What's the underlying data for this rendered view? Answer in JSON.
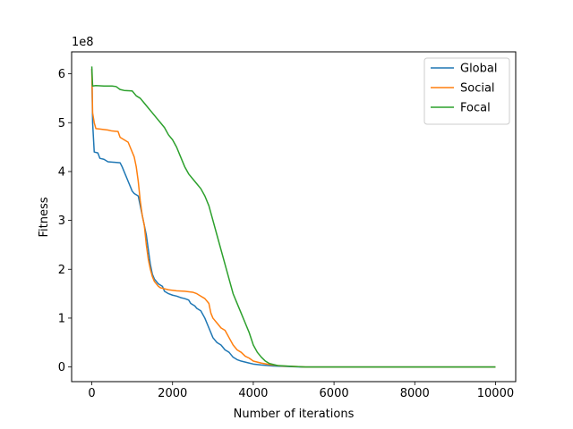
{
  "chart_data": {
    "type": "line",
    "title": "",
    "xlabel": "Number of iterations",
    "ylabel": "Fitness",
    "y_offset_label": "1e8",
    "xlim": [
      -500,
      10500
    ],
    "ylim": [
      -0.3,
      6.45
    ],
    "x_ticks": [
      0,
      2000,
      4000,
      6000,
      8000,
      10000
    ],
    "x_tick_labels": [
      "0",
      "2000",
      "4000",
      "6000",
      "8000",
      "10000"
    ],
    "y_ticks": [
      0,
      1,
      2,
      3,
      4,
      5,
      6
    ],
    "y_tick_labels": [
      "0",
      "1",
      "2",
      "3",
      "4",
      "5",
      "6"
    ],
    "grid": false,
    "legend_position": "top-right",
    "series": [
      {
        "name": "Global",
        "color": "#1f77b4",
        "points": [
          [
            0,
            6.1
          ],
          [
            20,
            5.0
          ],
          [
            60,
            4.4
          ],
          [
            150,
            4.38
          ],
          [
            200,
            4.27
          ],
          [
            300,
            4.25
          ],
          [
            400,
            4.2
          ],
          [
            700,
            4.18
          ],
          [
            750,
            4.1
          ],
          [
            800,
            4.0
          ],
          [
            900,
            3.8
          ],
          [
            1000,
            3.6
          ],
          [
            1050,
            3.55
          ],
          [
            1150,
            3.5
          ],
          [
            1200,
            3.3
          ],
          [
            1250,
            3.1
          ],
          [
            1300,
            2.9
          ],
          [
            1350,
            2.7
          ],
          [
            1400,
            2.4
          ],
          [
            1450,
            2.1
          ],
          [
            1500,
            1.9
          ],
          [
            1550,
            1.8
          ],
          [
            1600,
            1.75
          ],
          [
            1650,
            1.7
          ],
          [
            1750,
            1.65
          ],
          [
            1800,
            1.55
          ],
          [
            1900,
            1.5
          ],
          [
            2000,
            1.47
          ],
          [
            2100,
            1.45
          ],
          [
            2200,
            1.42
          ],
          [
            2300,
            1.4
          ],
          [
            2400,
            1.37
          ],
          [
            2450,
            1.3
          ],
          [
            2550,
            1.25
          ],
          [
            2600,
            1.2
          ],
          [
            2700,
            1.15
          ],
          [
            2800,
            1.0
          ],
          [
            2900,
            0.8
          ],
          [
            3000,
            0.6
          ],
          [
            3100,
            0.5
          ],
          [
            3200,
            0.45
          ],
          [
            3300,
            0.35
          ],
          [
            3400,
            0.3
          ],
          [
            3500,
            0.2
          ],
          [
            3600,
            0.15
          ],
          [
            3700,
            0.12
          ],
          [
            3800,
            0.1
          ],
          [
            3900,
            0.08
          ],
          [
            4000,
            0.06
          ],
          [
            4200,
            0.04
          ],
          [
            4500,
            0.02
          ],
          [
            4800,
            0.01
          ],
          [
            5200,
            0.0
          ],
          [
            6000,
            0.0
          ],
          [
            10000,
            0.0
          ]
        ]
      },
      {
        "name": "Social",
        "color": "#ff7f0e",
        "points": [
          [
            0,
            6.1
          ],
          [
            20,
            5.2
          ],
          [
            60,
            5.0
          ],
          [
            100,
            4.88
          ],
          [
            200,
            4.87
          ],
          [
            400,
            4.85
          ],
          [
            500,
            4.83
          ],
          [
            650,
            4.82
          ],
          [
            700,
            4.7
          ],
          [
            800,
            4.65
          ],
          [
            900,
            4.6
          ],
          [
            950,
            4.5
          ],
          [
            1000,
            4.4
          ],
          [
            1050,
            4.3
          ],
          [
            1100,
            4.1
          ],
          [
            1150,
            3.8
          ],
          [
            1200,
            3.4
          ],
          [
            1250,
            3.1
          ],
          [
            1300,
            2.9
          ],
          [
            1350,
            2.5
          ],
          [
            1400,
            2.2
          ],
          [
            1450,
            2.0
          ],
          [
            1500,
            1.85
          ],
          [
            1550,
            1.75
          ],
          [
            1600,
            1.7
          ],
          [
            1650,
            1.65
          ],
          [
            1700,
            1.62
          ],
          [
            1800,
            1.6
          ],
          [
            1900,
            1.58
          ],
          [
            2100,
            1.56
          ],
          [
            2300,
            1.55
          ],
          [
            2500,
            1.53
          ],
          [
            2600,
            1.5
          ],
          [
            2700,
            1.45
          ],
          [
            2800,
            1.4
          ],
          [
            2900,
            1.3
          ],
          [
            2950,
            1.1
          ],
          [
            3000,
            1.0
          ],
          [
            3100,
            0.9
          ],
          [
            3200,
            0.8
          ],
          [
            3300,
            0.75
          ],
          [
            3400,
            0.6
          ],
          [
            3500,
            0.45
          ],
          [
            3600,
            0.35
          ],
          [
            3700,
            0.3
          ],
          [
            3800,
            0.22
          ],
          [
            3900,
            0.18
          ],
          [
            4000,
            0.12
          ],
          [
            4200,
            0.08
          ],
          [
            4400,
            0.05
          ],
          [
            4700,
            0.02
          ],
          [
            5000,
            0.01
          ],
          [
            5300,
            0.0
          ],
          [
            6000,
            0.0
          ],
          [
            10000,
            0.0
          ]
        ]
      },
      {
        "name": "Focal",
        "color": "#2ca02c",
        "points": [
          [
            0,
            6.15
          ],
          [
            20,
            5.75
          ],
          [
            100,
            5.76
          ],
          [
            300,
            5.75
          ],
          [
            500,
            5.75
          ],
          [
            600,
            5.74
          ],
          [
            700,
            5.68
          ],
          [
            800,
            5.66
          ],
          [
            1000,
            5.65
          ],
          [
            1100,
            5.55
          ],
          [
            1200,
            5.5
          ],
          [
            1300,
            5.4
          ],
          [
            1400,
            5.3
          ],
          [
            1500,
            5.2
          ],
          [
            1600,
            5.1
          ],
          [
            1700,
            5.0
          ],
          [
            1800,
            4.9
          ],
          [
            1900,
            4.75
          ],
          [
            2000,
            4.65
          ],
          [
            2100,
            4.5
          ],
          [
            2200,
            4.3
          ],
          [
            2300,
            4.1
          ],
          [
            2400,
            3.95
          ],
          [
            2500,
            3.85
          ],
          [
            2600,
            3.75
          ],
          [
            2700,
            3.65
          ],
          [
            2800,
            3.5
          ],
          [
            2900,
            3.3
          ],
          [
            3000,
            3.0
          ],
          [
            3100,
            2.7
          ],
          [
            3200,
            2.4
          ],
          [
            3300,
            2.1
          ],
          [
            3400,
            1.8
          ],
          [
            3500,
            1.5
          ],
          [
            3600,
            1.3
          ],
          [
            3700,
            1.1
          ],
          [
            3800,
            0.9
          ],
          [
            3900,
            0.7
          ],
          [
            4000,
            0.45
          ],
          [
            4100,
            0.3
          ],
          [
            4200,
            0.2
          ],
          [
            4300,
            0.12
          ],
          [
            4400,
            0.07
          ],
          [
            4500,
            0.05
          ],
          [
            4600,
            0.03
          ],
          [
            4800,
            0.02
          ],
          [
            5000,
            0.01
          ],
          [
            5300,
            0.0
          ],
          [
            6000,
            0.0
          ],
          [
            10000,
            0.0
          ]
        ]
      }
    ]
  }
}
